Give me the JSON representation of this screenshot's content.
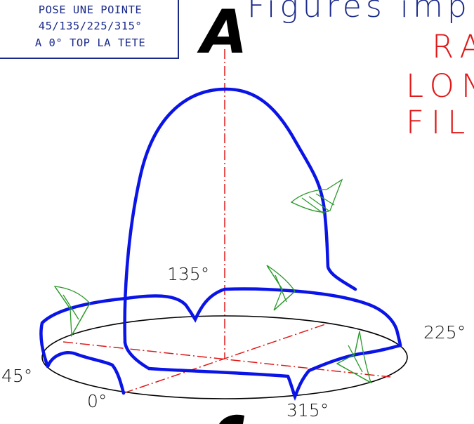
{
  "note": {
    "lines": [
      "POSE UNE POINTE",
      "45/135/225/315°",
      "A 0° TOP LA TETE"
    ]
  },
  "title_fragment": "Figures imp",
  "red_words": [
    "RA",
    "LON",
    "FIL"
  ],
  "big_letter": "A",
  "angles": {
    "a0": "0°",
    "a45": "45°",
    "a135": "135°",
    "a225": "225°",
    "a315": "315°"
  },
  "colors": {
    "trajectory": "#0a14e6",
    "axis": "#e01818",
    "base": "#000000",
    "marker": "#2a9a2a",
    "note": "#1a2a8a"
  },
  "icons": [
    "green-arrow-marker-icon"
  ]
}
